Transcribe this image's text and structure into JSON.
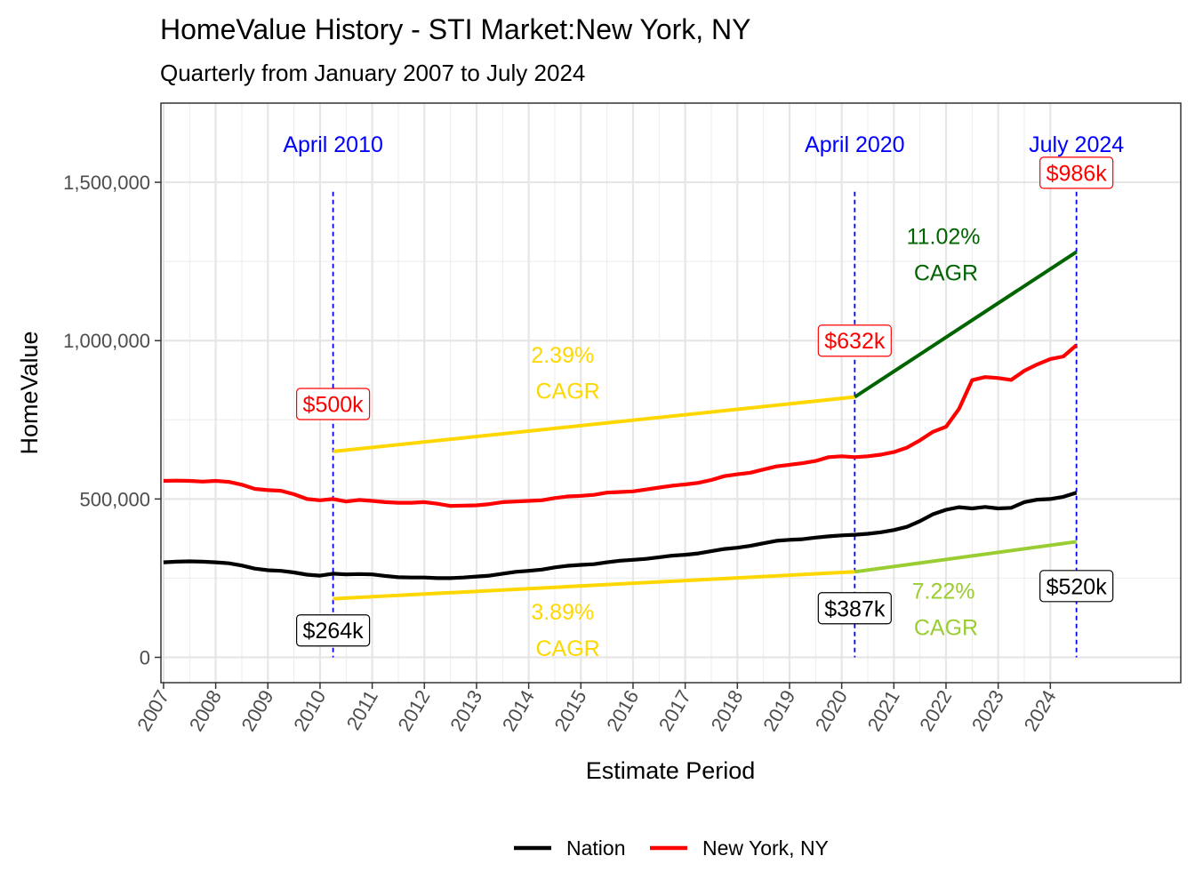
{
  "chart_data": {
    "type": "line",
    "title": "HomeValue History - STI Market:New York, NY",
    "subtitle": "Quarterly from January 2007 to July 2024",
    "xlabel": "Estimate Period",
    "ylabel": "HomeValue",
    "xlim": [
      2006.95,
      2026.5
    ],
    "ylim": [
      -80000,
      1750000
    ],
    "grid": true,
    "legend": "bottom",
    "y_ticks": [
      {
        "value": 0,
        "label": "0"
      },
      {
        "value": 500000,
        "label": "500,000"
      },
      {
        "value": 1000000,
        "label": "1,000,000"
      },
      {
        "value": 1500000,
        "label": "1,500,000"
      }
    ],
    "x_ticks": [
      {
        "value": 2007,
        "label": "2007"
      },
      {
        "value": 2008,
        "label": "2008"
      },
      {
        "value": 2009,
        "label": "2009"
      },
      {
        "value": 2010,
        "label": "2010"
      },
      {
        "value": 2011,
        "label": "2011"
      },
      {
        "value": 2012,
        "label": "2012"
      },
      {
        "value": 2013,
        "label": "2013"
      },
      {
        "value": 2014,
        "label": "2014"
      },
      {
        "value": 2015,
        "label": "2015"
      },
      {
        "value": 2016,
        "label": "2016"
      },
      {
        "value": 2017,
        "label": "2017"
      },
      {
        "value": 2018,
        "label": "2018"
      },
      {
        "value": 2019,
        "label": "2019"
      },
      {
        "value": 2020,
        "label": "2020"
      },
      {
        "value": 2021,
        "label": "2021"
      },
      {
        "value": 2022,
        "label": "2022"
      },
      {
        "value": 2023,
        "label": "2023"
      },
      {
        "value": 2024,
        "label": "2024"
      }
    ],
    "series": [
      {
        "name": "Nation",
        "color": "#000000",
        "points": [
          [
            2007.0,
            300000
          ],
          [
            2007.25,
            302000
          ],
          [
            2007.5,
            303000
          ],
          [
            2007.75,
            302000
          ],
          [
            2008.0,
            300000
          ],
          [
            2008.25,
            297000
          ],
          [
            2008.5,
            290000
          ],
          [
            2008.75,
            280000
          ],
          [
            2009.0,
            275000
          ],
          [
            2009.25,
            273000
          ],
          [
            2009.5,
            268000
          ],
          [
            2009.75,
            261000
          ],
          [
            2010.0,
            258000
          ],
          [
            2010.25,
            264000
          ],
          [
            2010.5,
            262000
          ],
          [
            2010.75,
            263000
          ],
          [
            2011.0,
            262000
          ],
          [
            2011.25,
            257000
          ],
          [
            2011.5,
            253000
          ],
          [
            2011.75,
            252000
          ],
          [
            2012.0,
            252000
          ],
          [
            2012.25,
            250000
          ],
          [
            2012.5,
            250000
          ],
          [
            2012.75,
            252000
          ],
          [
            2013.0,
            255000
          ],
          [
            2013.25,
            258000
          ],
          [
            2013.5,
            264000
          ],
          [
            2013.75,
            270000
          ],
          [
            2014.0,
            273000
          ],
          [
            2014.25,
            277000
          ],
          [
            2014.5,
            284000
          ],
          [
            2014.75,
            289000
          ],
          [
            2015.0,
            292000
          ],
          [
            2015.25,
            294000
          ],
          [
            2015.5,
            300000
          ],
          [
            2015.75,
            305000
          ],
          [
            2016.0,
            308000
          ],
          [
            2016.25,
            311000
          ],
          [
            2016.5,
            316000
          ],
          [
            2016.75,
            321000
          ],
          [
            2017.0,
            324000
          ],
          [
            2017.25,
            328000
          ],
          [
            2017.5,
            335000
          ],
          [
            2017.75,
            342000
          ],
          [
            2018.0,
            346000
          ],
          [
            2018.25,
            352000
          ],
          [
            2018.5,
            360000
          ],
          [
            2018.75,
            368000
          ],
          [
            2019.0,
            371000
          ],
          [
            2019.25,
            373000
          ],
          [
            2019.5,
            378000
          ],
          [
            2019.75,
            382000
          ],
          [
            2020.0,
            385000
          ],
          [
            2020.25,
            387000
          ],
          [
            2020.5,
            390000
          ],
          [
            2020.75,
            395000
          ],
          [
            2021.0,
            402000
          ],
          [
            2021.25,
            412000
          ],
          [
            2021.5,
            430000
          ],
          [
            2021.75,
            452000
          ],
          [
            2022.0,
            466000
          ],
          [
            2022.25,
            474000
          ],
          [
            2022.5,
            470000
          ],
          [
            2022.75,
            475000
          ],
          [
            2023.0,
            470000
          ],
          [
            2023.25,
            472000
          ],
          [
            2023.5,
            490000
          ],
          [
            2023.75,
            498000
          ],
          [
            2024.0,
            500000
          ],
          [
            2024.25,
            507000
          ],
          [
            2024.5,
            520000
          ]
        ]
      },
      {
        "name": "New York, NY",
        "color": "#ff0000",
        "points": [
          [
            2007.0,
            557000
          ],
          [
            2007.25,
            558000
          ],
          [
            2007.5,
            557000
          ],
          [
            2007.75,
            555000
          ],
          [
            2008.0,
            557000
          ],
          [
            2008.25,
            554000
          ],
          [
            2008.5,
            545000
          ],
          [
            2008.75,
            532000
          ],
          [
            2009.0,
            528000
          ],
          [
            2009.25,
            526000
          ],
          [
            2009.5,
            515000
          ],
          [
            2009.75,
            500000
          ],
          [
            2010.0,
            496000
          ],
          [
            2010.25,
            500000
          ],
          [
            2010.5,
            492000
          ],
          [
            2010.75,
            497000
          ],
          [
            2011.0,
            494000
          ],
          [
            2011.25,
            490000
          ],
          [
            2011.5,
            488000
          ],
          [
            2011.75,
            488000
          ],
          [
            2012.0,
            490000
          ],
          [
            2012.25,
            485000
          ],
          [
            2012.5,
            478000
          ],
          [
            2012.75,
            479000
          ],
          [
            2013.0,
            480000
          ],
          [
            2013.25,
            484000
          ],
          [
            2013.5,
            490000
          ],
          [
            2013.75,
            492000
          ],
          [
            2014.0,
            494000
          ],
          [
            2014.25,
            496000
          ],
          [
            2014.5,
            503000
          ],
          [
            2014.75,
            508000
          ],
          [
            2015.0,
            510000
          ],
          [
            2015.25,
            513000
          ],
          [
            2015.5,
            520000
          ],
          [
            2015.75,
            522000
          ],
          [
            2016.0,
            524000
          ],
          [
            2016.25,
            530000
          ],
          [
            2016.5,
            536000
          ],
          [
            2016.75,
            542000
          ],
          [
            2017.0,
            546000
          ],
          [
            2017.25,
            551000
          ],
          [
            2017.5,
            560000
          ],
          [
            2017.75,
            572000
          ],
          [
            2018.0,
            578000
          ],
          [
            2018.25,
            583000
          ],
          [
            2018.5,
            593000
          ],
          [
            2018.75,
            603000
          ],
          [
            2019.0,
            608000
          ],
          [
            2019.25,
            613000
          ],
          [
            2019.5,
            620000
          ],
          [
            2019.75,
            632000
          ],
          [
            2020.0,
            635000
          ],
          [
            2020.25,
            632000
          ],
          [
            2020.5,
            635000
          ],
          [
            2020.75,
            640000
          ],
          [
            2021.0,
            648000
          ],
          [
            2021.25,
            662000
          ],
          [
            2021.5,
            685000
          ],
          [
            2021.75,
            712000
          ],
          [
            2022.0,
            728000
          ],
          [
            2022.25,
            785000
          ],
          [
            2022.5,
            875000
          ],
          [
            2022.75,
            885000
          ],
          [
            2023.0,
            882000
          ],
          [
            2023.25,
            876000
          ],
          [
            2023.5,
            905000
          ],
          [
            2023.75,
            925000
          ],
          [
            2024.0,
            942000
          ],
          [
            2024.25,
            950000
          ],
          [
            2024.5,
            986000
          ]
        ]
      }
    ],
    "trend_lines": [
      {
        "from": [
          2010.25,
          650000
        ],
        "to": [
          2020.25,
          822000
        ],
        "color": "#ffd700"
      },
      {
        "from": [
          2010.25,
          185000
        ],
        "to": [
          2020.25,
          270000
        ],
        "color": "#ffd700"
      },
      {
        "from": [
          2020.25,
          822000
        ],
        "to": [
          2024.5,
          1280000
        ],
        "color": "#006400"
      },
      {
        "from": [
          2020.25,
          270000
        ],
        "to": [
          2024.5,
          365000
        ],
        "color": "#9acd32"
      }
    ],
    "reference_lines": [
      {
        "x": 2010.25,
        "label": "April 2010",
        "color": "#0000ff"
      },
      {
        "x": 2020.25,
        "label": "April 2020",
        "color": "#0000ff"
      },
      {
        "x": 2024.5,
        "label": "July 2024",
        "color": "#0000ff"
      }
    ],
    "annotations": [
      {
        "x": 2010.25,
        "y": 800000,
        "text": "$500k",
        "color": "#ff0000",
        "boxed": true
      },
      {
        "x": 2020.25,
        "y": 1000000,
        "text": "$632k",
        "color": "#ff0000",
        "boxed": true
      },
      {
        "x": 2024.5,
        "y": 1530000,
        "text": "$986k",
        "color": "#ff0000",
        "boxed": true
      },
      {
        "x": 2010.25,
        "y": 85000,
        "text": "$264k",
        "color": "#000000",
        "boxed": true
      },
      {
        "x": 2020.25,
        "y": 155000,
        "text": "$387k",
        "color": "#000000",
        "boxed": true
      },
      {
        "x": 2024.5,
        "y": 225000,
        "text": "$520k",
        "color": "#000000",
        "boxed": true
      },
      {
        "x": 2014.65,
        "y": 955000,
        "text": "2.39%",
        "color": "#ffd700",
        "boxed": false
      },
      {
        "x": 2014.75,
        "y": 842000,
        "text": "CAGR",
        "color": "#ffd700",
        "boxed": false
      },
      {
        "x": 2014.65,
        "y": 145000,
        "text": "3.89%",
        "color": "#ffd700",
        "boxed": false
      },
      {
        "x": 2014.75,
        "y": 30000,
        "text": "CAGR",
        "color": "#ffd700",
        "boxed": false
      },
      {
        "x": 2021.95,
        "y": 1330000,
        "text": "11.02%",
        "color": "#006400",
        "boxed": false
      },
      {
        "x": 2022.0,
        "y": 1215000,
        "text": "CAGR",
        "color": "#006400",
        "boxed": false
      },
      {
        "x": 2021.95,
        "y": 210000,
        "text": "7.22%",
        "color": "#9acd32",
        "boxed": false
      },
      {
        "x": 2022.0,
        "y": 95000,
        "text": "CAGR",
        "color": "#9acd32",
        "boxed": false
      }
    ]
  }
}
